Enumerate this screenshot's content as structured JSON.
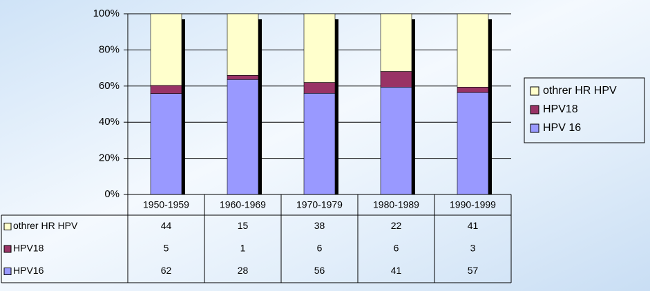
{
  "chart_data": {
    "type": "bar",
    "stacking": "percent",
    "categories": [
      "1950-1959",
      "1960-1969",
      "1970-1979",
      "1980-1989",
      "1990-1999"
    ],
    "series": [
      {
        "name": "othrer HR HPV",
        "color": "#ffffcc",
        "values": [
          44,
          15,
          38,
          22,
          41
        ]
      },
      {
        "name": "HPV18",
        "color": "#993366",
        "values": [
          5,
          1,
          6,
          6,
          3
        ]
      },
      {
        "name": "HPV 16",
        "color": "#9999ff",
        "values": [
          62,
          28,
          56,
          41,
          57
        ]
      }
    ],
    "table_row_labels": [
      "othrer HR HPV",
      "HPV18",
      "HPV16"
    ],
    "ylim": [
      0,
      100
    ],
    "yticks": [
      {
        "value": 0,
        "label": "0%"
      },
      {
        "value": 20,
        "label": "20%"
      },
      {
        "value": 40,
        "label": "40%"
      },
      {
        "value": 60,
        "label": "60%"
      },
      {
        "value": 80,
        "label": "80%"
      },
      {
        "value": 100,
        "label": "100%"
      }
    ],
    "grid": true,
    "legend": "right",
    "data_table": true
  }
}
